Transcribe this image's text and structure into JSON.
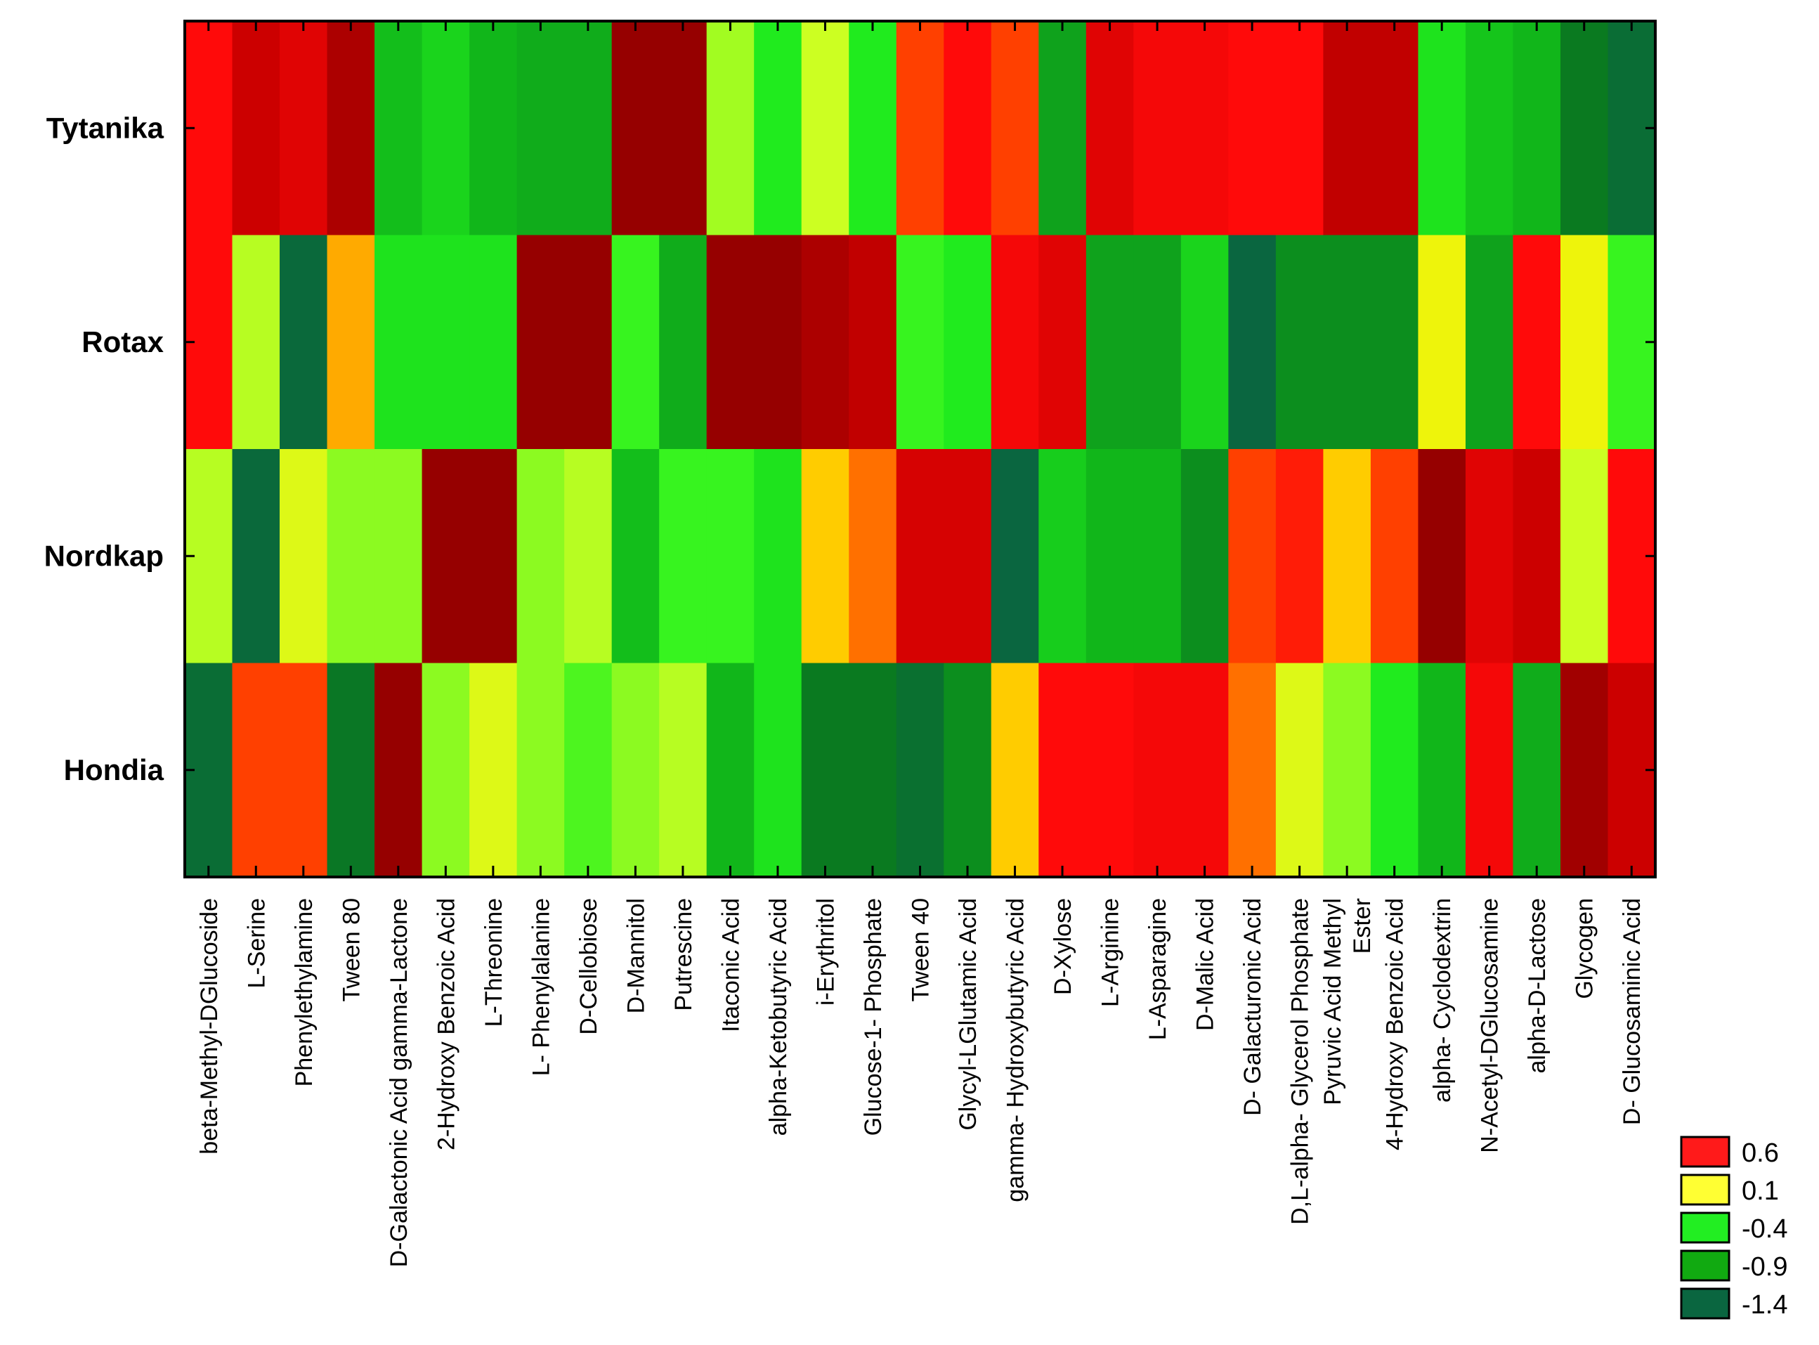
{
  "chart_data": {
    "type": "heatmap",
    "rows": [
      "Tytanika",
      "Rotax",
      "Nordkap",
      "Hondia"
    ],
    "columns": [
      [
        "beta-Methyl-DGlucoside"
      ],
      [
        "L-Serine"
      ],
      [
        "Phenylethylamine"
      ],
      [
        "Tween 80"
      ],
      [
        "D-Galactonic Acid gamma-Lactone"
      ],
      [
        "2-Hydroxy Benzoic Acid"
      ],
      [
        "L-Threonine"
      ],
      [
        "L- Phenylalanine"
      ],
      [
        "D-Cellobiose"
      ],
      [
        "D-Mannitol"
      ],
      [
        "Putrescine"
      ],
      [
        "Itaconic Acid"
      ],
      [
        "alpha-Ketobutyric Acid"
      ],
      [
        "i-Erythritol"
      ],
      [
        "Glucose-1- Phosphate"
      ],
      [
        "Tween 40"
      ],
      [
        "Glycyl-LGlutamic Acid"
      ],
      [
        "gamma- Hydroxybutyric Acid"
      ],
      [
        "D-Xylose"
      ],
      [
        "L-Arginine"
      ],
      [
        "L-Asparagine"
      ],
      [
        "D-Malic Acid"
      ],
      [
        "D- Galacturonic Acid"
      ],
      [
        "D,L-alpha- Glycerol Phosphate"
      ],
      [
        "Pyruvic Acid Methyl",
        "Ester"
      ],
      [
        "4-Hydroxy Benzoic Acid"
      ],
      [
        "alpha- Cyclodextrin"
      ],
      [
        "N-Acetyl-DGlucosamine"
      ],
      [
        "alpha-D-Lactose"
      ],
      [
        "Glycogen"
      ],
      [
        "D- Glucosaminic Acid"
      ]
    ],
    "values": [
      [
        0.6,
        0.85,
        0.75,
        1.0,
        -0.75,
        -0.6,
        -0.8,
        -0.85,
        -0.85,
        1.1,
        1.1,
        -0.1,
        -0.45,
        0.0,
        -0.45,
        0.45,
        0.6,
        0.45,
        -0.9,
        0.75,
        0.65,
        0.65,
        0.6,
        0.6,
        0.9,
        0.9,
        -0.5,
        -0.7,
        -0.8,
        -1.1,
        -1.3
      ],
      [
        0.6,
        -0.05,
        -1.35,
        0.25,
        -0.5,
        -0.5,
        -0.5,
        1.1,
        1.1,
        -0.35,
        -0.85,
        1.1,
        1.1,
        1.0,
        0.9,
        -0.35,
        -0.45,
        0.65,
        0.75,
        -0.9,
        -0.9,
        -0.6,
        -1.4,
        -1.0,
        -1.0,
        -1.0,
        0.1,
        -0.9,
        0.6,
        0.1,
        -0.35
      ],
      [
        -0.05,
        -1.35,
        0.05,
        -0.15,
        -0.15,
        1.1,
        1.1,
        -0.15,
        -0.05,
        -0.75,
        -0.35,
        -0.35,
        -0.5,
        0.2,
        0.35,
        0.8,
        0.8,
        -1.4,
        -0.65,
        -0.8,
        -0.8,
        -1.0,
        0.45,
        0.55,
        0.2,
        0.45,
        1.15,
        0.75,
        0.85,
        0.0,
        0.6
      ],
      [
        -1.3,
        0.45,
        0.45,
        -1.15,
        1.1,
        -0.15,
        0.05,
        -0.15,
        -0.3,
        -0.15,
        -0.05,
        -0.8,
        -0.5,
        -1.1,
        -1.1,
        -1.25,
        -1.0,
        0.2,
        0.6,
        0.6,
        0.65,
        0.65,
        0.35,
        0.05,
        -0.15,
        -0.45,
        -0.8,
        0.65,
        -0.85,
        1.05,
        0.85
      ]
    ],
    "legend": {
      "placement": "bottom-right",
      "entries": [
        {
          "label": "0.6",
          "color": "#ff1a1a"
        },
        {
          "label": "0.1",
          "color": "#ffff33"
        },
        {
          "label": "-0.4",
          "color": "#22ee22"
        },
        {
          "label": "-0.9",
          "color": "#11aa11"
        },
        {
          "label": "-1.4",
          "color": "#0a6640"
        }
      ]
    },
    "colorscale": {
      "stops": [
        {
          "v": -1.4,
          "color": "#0a6640"
        },
        {
          "v": -1.1,
          "color": "#0a7a20"
        },
        {
          "v": -0.8,
          "color": "#11b61a"
        },
        {
          "v": -0.4,
          "color": "#22f21e"
        },
        {
          "v": 0.0,
          "color": "#ccff22"
        },
        {
          "v": 0.15,
          "color": "#ffee00"
        },
        {
          "v": 0.3,
          "color": "#ff8800"
        },
        {
          "v": 0.45,
          "color": "#ff4000"
        },
        {
          "v": 0.6,
          "color": "#ff0a0a"
        },
        {
          "v": 0.85,
          "color": "#cc0000"
        },
        {
          "v": 1.1,
          "color": "#960000"
        }
      ]
    }
  }
}
